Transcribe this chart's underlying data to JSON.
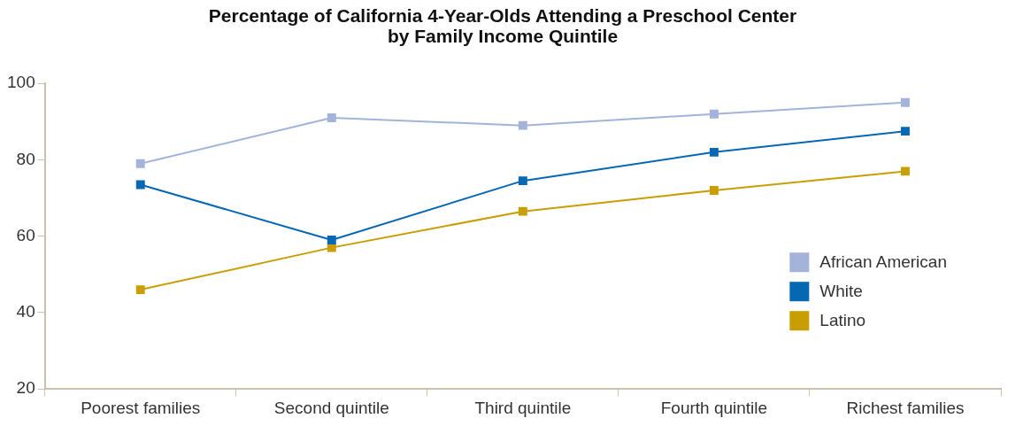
{
  "chart_data": {
    "type": "line",
    "title": "Percentage of California 4-Year-Olds Attending a Preschool Center\nby Family Income Quintile",
    "categories": [
      "Poorest families",
      "Second quintile",
      "Third quintile",
      "Fourth quintile",
      "Richest families"
    ],
    "series": [
      {
        "name": "African American",
        "color": "#a3b3da",
        "values": [
          79,
          91,
          89,
          92,
          95
        ]
      },
      {
        "name": "White",
        "color": "#0668b3",
        "values": [
          73.5,
          59,
          74.5,
          82,
          87.5
        ]
      },
      {
        "name": "Latino",
        "color": "#c99e05",
        "values": [
          46,
          57,
          66.5,
          72,
          77
        ]
      }
    ],
    "ylim": [
      20,
      100
    ],
    "yticks": [
      20,
      40,
      60,
      80,
      100
    ],
    "marker": "square",
    "line_style": "solid",
    "legend": "bottom right"
  }
}
